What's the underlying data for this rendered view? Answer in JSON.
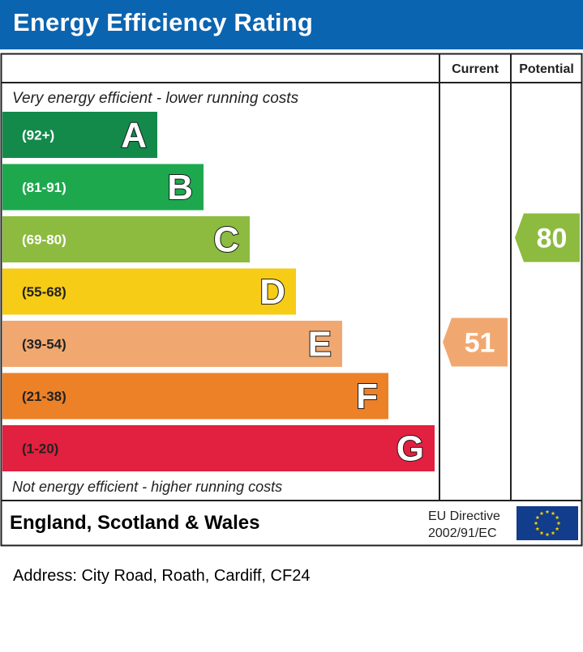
{
  "header": {
    "title": "Energy Efficiency Rating"
  },
  "columns": {
    "current": "Current",
    "potential": "Potential"
  },
  "top_note": "Very energy efficient - lower running costs",
  "bottom_note": "Not energy efficient - higher running costs",
  "footer": {
    "region": "England, Scotland & Wales",
    "directive_line1": "EU Directive",
    "directive_line2": "2002/91/EC",
    "flag_icon": "eu-flag-icon"
  },
  "address": "Address: City Road, Roath, Cardiff, CF24",
  "chart_data": {
    "type": "bar",
    "categories": [
      "A",
      "B",
      "C",
      "D",
      "E",
      "F",
      "G"
    ],
    "ranges": [
      "(92+)",
      "(81-91)",
      "(69-80)",
      "(55-68)",
      "(39-54)",
      "(21-38)",
      "(1-20)"
    ],
    "colors": [
      "#138a4a",
      "#1ea84e",
      "#8cbb3f",
      "#f6cc17",
      "#f1a870",
      "#ec8128",
      "#e2203f"
    ],
    "current": {
      "value": 51,
      "band": "E",
      "color": "#f1a870"
    },
    "potential": {
      "value": 80,
      "band": "C",
      "color": "#8cbb3f"
    }
  }
}
